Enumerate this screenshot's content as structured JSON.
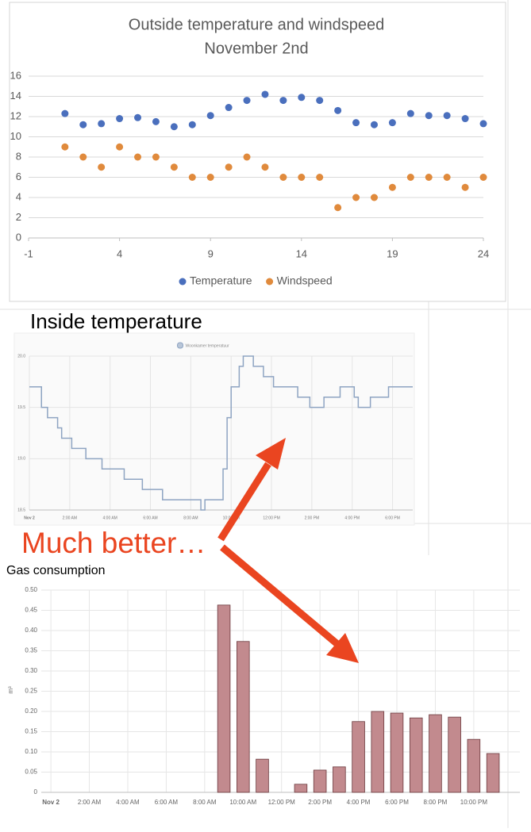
{
  "annotations": [
    "Much better…"
  ],
  "chart_data": [
    {
      "type": "scatter",
      "title": "Outside temperature and windspeed",
      "subtitle": "November 2nd",
      "x": [
        1,
        2,
        3,
        4,
        5,
        6,
        7,
        8,
        9,
        10,
        11,
        12,
        13,
        14,
        15,
        16,
        17,
        18,
        19,
        20,
        21,
        22,
        23,
        24
      ],
      "series": [
        {
          "name": "Temperature",
          "color": "#4a6fbd",
          "values": [
            12.3,
            11.2,
            11.3,
            11.8,
            11.9,
            11.5,
            11.0,
            11.2,
            12.1,
            12.9,
            13.6,
            14.2,
            13.6,
            13.9,
            13.6,
            12.6,
            11.4,
            11.2,
            11.4,
            12.3,
            12.1,
            12.1,
            11.8,
            11.3
          ]
        },
        {
          "name": "Windspeed",
          "color": "#e08a3c",
          "values": [
            9,
            8,
            7,
            9,
            8,
            8,
            7,
            6,
            6,
            7,
            8,
            7,
            6,
            6,
            6,
            3,
            4,
            4,
            5,
            6,
            6,
            6,
            5,
            6
          ]
        }
      ],
      "xlim": [
        -1,
        24
      ],
      "xticks": [
        -1,
        4,
        9,
        14,
        19,
        24
      ],
      "ylim": [
        0,
        16
      ],
      "yticks": [
        0,
        2,
        4,
        6,
        8,
        10,
        12,
        14,
        16
      ],
      "grid": true,
      "legend": "bottom"
    },
    {
      "type": "step",
      "title": "Inside temperature",
      "x": [
        0,
        0.6,
        0.9,
        1.4,
        1.6,
        2.1,
        2.8,
        3.6,
        4.7,
        5.6,
        6.6,
        8.5,
        8.7,
        9.6,
        9.8,
        10.0,
        10.4,
        10.6,
        11.1,
        11.6,
        12.1,
        13.3,
        13.9,
        14.6,
        15.4,
        16.1,
        16.3,
        16.9,
        17.8,
        19.0
      ],
      "series": [
        {
          "name": "Woonkamer temperatuur",
          "color": "#8ea4c2",
          "values": [
            19.7,
            19.5,
            19.4,
            19.3,
            19.2,
            19.1,
            19.0,
            18.9,
            18.8,
            18.7,
            18.6,
            18.5,
            18.6,
            18.9,
            19.4,
            19.7,
            19.9,
            20.0,
            19.9,
            19.8,
            19.7,
            19.6,
            19.5,
            19.6,
            19.7,
            19.6,
            19.5,
            19.6,
            19.7,
            19.7
          ]
        }
      ],
      "xlim": [
        0,
        19.0
      ],
      "xticks": [
        {
          "value": 0,
          "label": "Nov 2"
        },
        {
          "value": 2,
          "label": "2:00 AM"
        },
        {
          "value": 4,
          "label": "4:00 AM"
        },
        {
          "value": 6,
          "label": "6:00 AM"
        },
        {
          "value": 8,
          "label": "8:00 AM"
        },
        {
          "value": 10,
          "label": "10:00 AM"
        },
        {
          "value": 12,
          "label": "12:00 PM"
        },
        {
          "value": 14,
          "label": "2:00 PM"
        },
        {
          "value": 16,
          "label": "4:00 PM"
        },
        {
          "value": 18,
          "label": "6:00 PM"
        }
      ],
      "ylim": [
        18.5,
        20.0
      ],
      "yticks": [
        18.5,
        {
          "value": 19.0,
          "label": "19.0"
        },
        19.5,
        {
          "value": 20.0,
          "label": "20.0"
        }
      ],
      "grid": true,
      "legend": "top"
    },
    {
      "type": "bar",
      "title": "Gas consumption",
      "ylabel": "m³",
      "x": [
        9,
        10,
        11,
        13,
        14,
        15,
        16,
        17,
        18,
        19,
        20,
        21,
        22,
        23
      ],
      "values": [
        0.463,
        0.373,
        0.082,
        0.02,
        0.055,
        0.063,
        0.175,
        0.2,
        0.196,
        0.184,
        0.192,
        0.186,
        0.131,
        0.096
      ],
      "color": "#c28a8e",
      "xlim": [
        -0.5,
        24.4
      ],
      "xticks": [
        {
          "value": 0,
          "label": "Nov 2"
        },
        {
          "value": 2,
          "label": "2:00 AM"
        },
        {
          "value": 4,
          "label": "4:00 AM"
        },
        {
          "value": 6,
          "label": "6:00 AM"
        },
        {
          "value": 8,
          "label": "8:00 AM"
        },
        {
          "value": 10,
          "label": "10:00 AM"
        },
        {
          "value": 12,
          "label": "12:00 PM"
        },
        {
          "value": 14,
          "label": "2:00 PM"
        },
        {
          "value": 16,
          "label": "4:00 PM"
        },
        {
          "value": 18,
          "label": "6:00 PM"
        },
        {
          "value": 20,
          "label": "8:00 PM"
        },
        {
          "value": 22,
          "label": "10:00 PM"
        }
      ],
      "ylim": [
        0,
        0.5
      ],
      "yticks": [
        0,
        0.05,
        {
          "value": 0.1,
          "label": "0.10"
        },
        0.15,
        {
          "value": 0.2,
          "label": "0.20"
        },
        0.25,
        {
          "value": 0.3,
          "label": "0.30"
        },
        0.35,
        {
          "value": 0.4,
          "label": "0.40"
        },
        0.45,
        {
          "value": 0.5,
          "label": "0.50"
        }
      ],
      "grid": true
    }
  ]
}
